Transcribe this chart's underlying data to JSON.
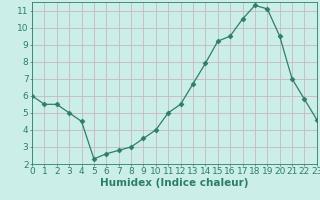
{
  "x": [
    0,
    1,
    2,
    3,
    4,
    5,
    6,
    7,
    8,
    9,
    10,
    11,
    12,
    13,
    14,
    15,
    16,
    17,
    18,
    19,
    20,
    21,
    22,
    23
  ],
  "y": [
    6.0,
    5.5,
    5.5,
    5.0,
    4.5,
    2.3,
    2.6,
    2.8,
    3.0,
    3.5,
    4.0,
    5.0,
    5.5,
    6.7,
    7.9,
    9.2,
    9.5,
    10.5,
    11.3,
    11.1,
    9.5,
    7.0,
    5.8,
    4.6
  ],
  "xlim": [
    0,
    23
  ],
  "ylim": [
    2,
    11.5
  ],
  "yticks": [
    2,
    3,
    4,
    5,
    6,
    7,
    8,
    9,
    10,
    11
  ],
  "xticks": [
    0,
    1,
    2,
    3,
    4,
    5,
    6,
    7,
    8,
    9,
    10,
    11,
    12,
    13,
    14,
    15,
    16,
    17,
    18,
    19,
    20,
    21,
    22,
    23
  ],
  "xlabel": "Humidex (Indice chaleur)",
  "line_color": "#2d7d6e",
  "marker": "D",
  "marker_size": 2.5,
  "bg_color": "#cceee8",
  "grid_color": "#c8b8c0",
  "axis_color": "#2d7d6e",
  "tick_color": "#2d7d6e",
  "label_color": "#2d7d6e",
  "xlabel_fontsize": 7.5,
  "tick_fontsize": 6.5
}
